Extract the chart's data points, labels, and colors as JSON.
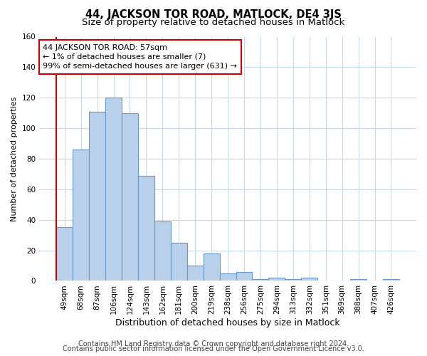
{
  "title": "44, JACKSON TOR ROAD, MATLOCK, DE4 3JS",
  "subtitle": "Size of property relative to detached houses in Matlock",
  "xlabel": "Distribution of detached houses by size in Matlock",
  "ylabel": "Number of detached properties",
  "categories": [
    "49sqm",
    "68sqm",
    "87sqm",
    "106sqm",
    "124sqm",
    "143sqm",
    "162sqm",
    "181sqm",
    "200sqm",
    "219sqm",
    "238sqm",
    "256sqm",
    "275sqm",
    "294sqm",
    "313sqm",
    "332sqm",
    "351sqm",
    "369sqm",
    "388sqm",
    "407sqm",
    "426sqm"
  ],
  "values": [
    35,
    86,
    111,
    120,
    110,
    69,
    39,
    25,
    10,
    18,
    5,
    6,
    1,
    2,
    1,
    2,
    0,
    0,
    1,
    0,
    1
  ],
  "bar_color": "#b8d0ea",
  "bar_edge_color": "#6699cc",
  "highlight_line_color": "#cc0000",
  "annotation_line1": "44 JACKSON TOR ROAD: 57sqm",
  "annotation_line2": "← 1% of detached houses are smaller (7)",
  "annotation_line3": "99% of semi-detached houses are larger (631) →",
  "annotation_box_color": "#ffffff",
  "annotation_box_edge_color": "#cc0000",
  "ylim": [
    0,
    160
  ],
  "yticks": [
    0,
    20,
    40,
    60,
    80,
    100,
    120,
    140,
    160
  ],
  "footer1": "Contains HM Land Registry data © Crown copyright and database right 2024.",
  "footer2": "Contains public sector information licensed under the Open Government Licence v3.0.",
  "bg_color": "#ffffff",
  "grid_color": "#c8d8ec",
  "title_fontsize": 10.5,
  "subtitle_fontsize": 9.5,
  "ylabel_fontsize": 8,
  "xlabel_fontsize": 9,
  "tick_fontsize": 7.5,
  "annotation_fontsize": 8,
  "footer_fontsize": 7
}
